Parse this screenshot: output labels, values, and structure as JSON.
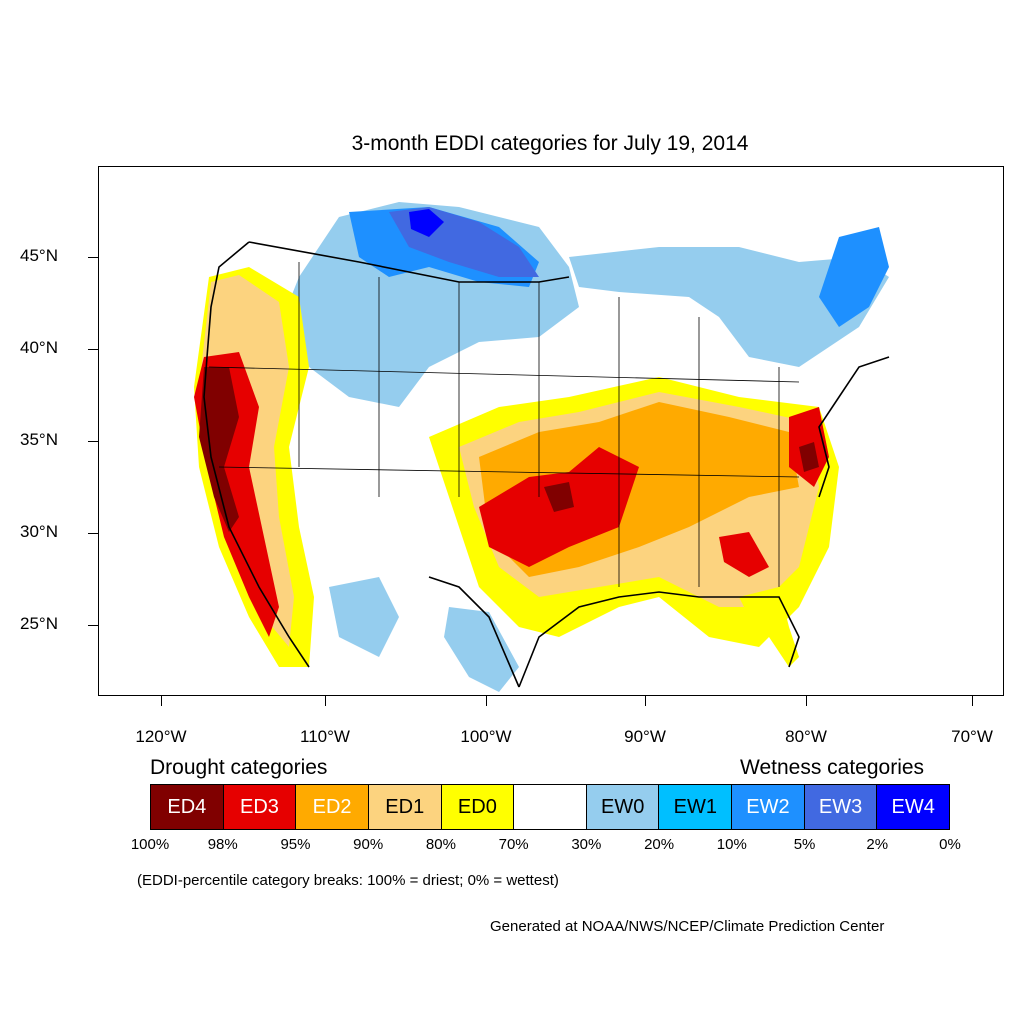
{
  "title": "3-month EDDI categories for July 19, 2014",
  "map": {
    "lat_labels": [
      "45°N",
      "40°N",
      "35°N",
      "30°N",
      "25°N"
    ],
    "lon_labels": [
      "120°W",
      "110°W",
      "100°W",
      "90°W",
      "80°W",
      "70°W"
    ]
  },
  "legend": {
    "drought_heading": "Drought categories",
    "wetness_heading": "Wetness categories",
    "boxes": [
      {
        "label": "ED4",
        "color": "#800000",
        "text_color": "#ffffff"
      },
      {
        "label": "ED3",
        "color": "#e60000",
        "text_color": "#ffffff"
      },
      {
        "label": "ED2",
        "color": "#ffaa00",
        "text_color": "#ffffff"
      },
      {
        "label": "ED1",
        "color": "#fcd37f",
        "text_color": "#000000"
      },
      {
        "label": "ED0",
        "color": "#ffff00",
        "text_color": "#000000"
      },
      {
        "label": "",
        "color": "#ffffff",
        "text_color": "#000000"
      },
      {
        "label": "EW0",
        "color": "#95cdee",
        "text_color": "#000000"
      },
      {
        "label": "EW1",
        "color": "#00bfff",
        "text_color": "#000000"
      },
      {
        "label": "EW2",
        "color": "#1e90ff",
        "text_color": "#ffffff"
      },
      {
        "label": "EW3",
        "color": "#4169e1",
        "text_color": "#ffffff"
      },
      {
        "label": "EW4",
        "color": "#0000ff",
        "text_color": "#ffffff"
      }
    ],
    "breaks": [
      "100%",
      "98%",
      "95%",
      "90%",
      "80%",
      "70%",
      "30%",
      "20%",
      "10%",
      "5%",
      "2%",
      "0%"
    ]
  },
  "note": "(EDDI-percentile category breaks: 100% = driest; 0% = wettest)",
  "credit": "Generated at NOAA/NWS/NCEP/Climate Prediction Center"
}
